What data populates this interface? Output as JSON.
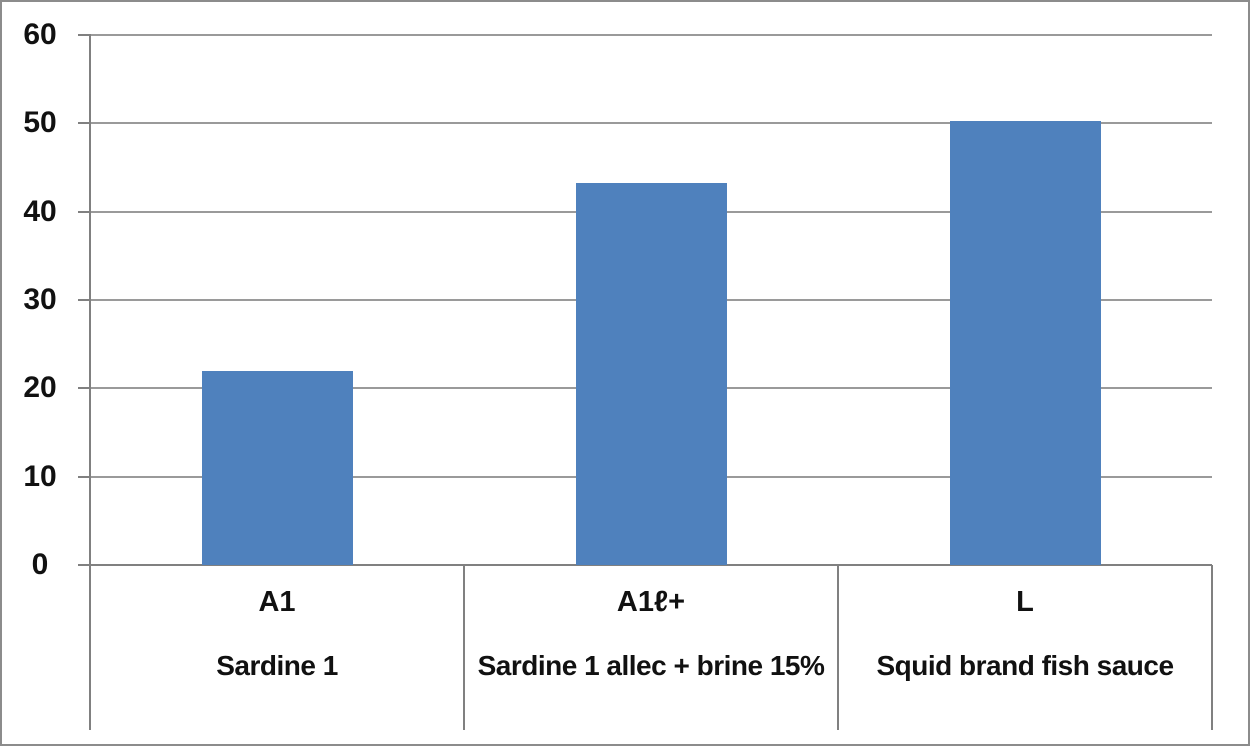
{
  "chart_data": {
    "type": "bar",
    "title": "",
    "xlabel": "",
    "ylabel": "",
    "ylim": [
      0,
      60
    ],
    "yticks": [
      0,
      10,
      20,
      30,
      40,
      50,
      60
    ],
    "grid": true,
    "legend": false,
    "categories": [
      "A1",
      "A1ℓ+",
      "L"
    ],
    "category_sublabels": [
      "Sardine 1",
      "Sardine 1 allec + brine 15%",
      "Squid brand fish sauce"
    ],
    "values": [
      22,
      43.3,
      50.3
    ],
    "colors": {
      "bar": "#4F81BD",
      "gridline": "#9A9A9A",
      "axis": "#808080",
      "text": "#111111",
      "background": "#FFFFFF",
      "frame_border": "#8C8C8C"
    }
  }
}
